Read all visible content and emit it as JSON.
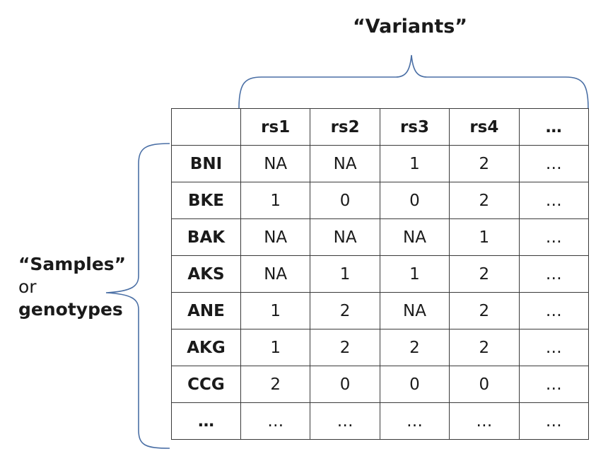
{
  "variants_label": "“Variants”",
  "samples_label": {
    "line1": "“Samples”",
    "line2": "or",
    "line3": "genotypes"
  },
  "table": {
    "columns": [
      "",
      "rs1",
      "rs2",
      "rs3",
      "rs4",
      "…"
    ],
    "rows": [
      {
        "sample": "BNI",
        "values": [
          "NA",
          "NA",
          "1",
          "2",
          "…"
        ]
      },
      {
        "sample": "BKE",
        "values": [
          "1",
          "0",
          "0",
          "2",
          "…"
        ]
      },
      {
        "sample": "BAK",
        "values": [
          "NA",
          "NA",
          "NA",
          "1",
          "…"
        ]
      },
      {
        "sample": "AKS",
        "values": [
          "NA",
          "1",
          "1",
          "2",
          "…"
        ]
      },
      {
        "sample": "ANE",
        "values": [
          "1",
          "2",
          "NA",
          "2",
          "…"
        ]
      },
      {
        "sample": "AKG",
        "values": [
          "1",
          "2",
          "2",
          "2",
          "…"
        ]
      },
      {
        "sample": "CCG",
        "values": [
          "2",
          "0",
          "0",
          "0",
          "…"
        ]
      },
      {
        "sample": "…",
        "values": [
          "…",
          "…",
          "…",
          "…",
          "…"
        ]
      }
    ]
  },
  "colors": {
    "brace": "#4a6fa5",
    "grid": "#3a3a3a",
    "text": "#1a1a1a"
  }
}
